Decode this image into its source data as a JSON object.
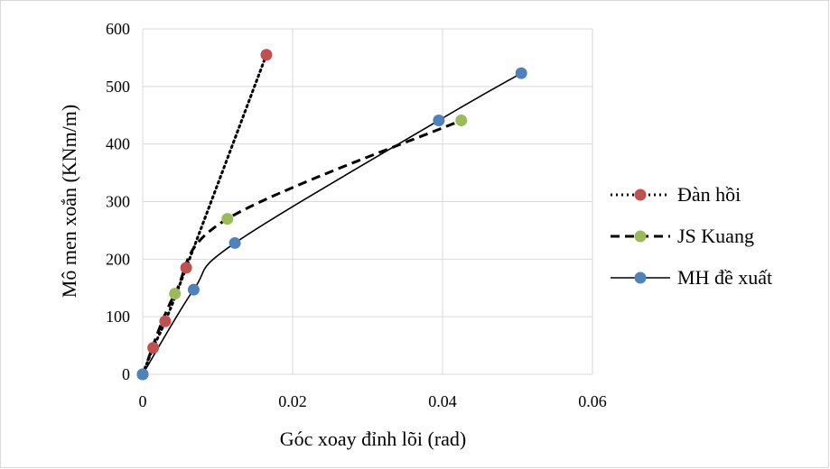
{
  "chart_data": {
    "type": "scatter",
    "title": "",
    "xlabel": "Góc xoay đỉnh lõi (rad)",
    "ylabel": "Mô men xoắn (KNm/m)",
    "xlim": [
      0,
      0.06
    ],
    "ylim": [
      0,
      600
    ],
    "x_ticks": [
      "0",
      "0.02",
      "0.04",
      "0.06"
    ],
    "y_ticks": [
      "0",
      "100",
      "200",
      "300",
      "400",
      "500",
      "600"
    ],
    "grid": "vertical and horizontal",
    "legend_position": "right",
    "series": [
      {
        "name": "Đàn hồi",
        "line_style": "dotted",
        "marker_color": "#c0504d",
        "points": [
          [
            0,
            0
          ],
          [
            0.0014,
            46
          ],
          [
            0.003,
            92
          ],
          [
            0.0058,
            185
          ],
          [
            0.0165,
            555
          ]
        ]
      },
      {
        "name": "JS Kuang",
        "line_style": "dashed",
        "marker_color": "#9bbb59",
        "points": [
          [
            0,
            0
          ],
          [
            0.0043,
            140
          ],
          [
            0.0113,
            270
          ],
          [
            0.0425,
            441
          ]
        ]
      },
      {
        "name": "MH đề xuất",
        "line_style": "solid",
        "marker_color": "#4f81bd",
        "points": [
          [
            0,
            0
          ],
          [
            0.0068,
            147
          ],
          [
            0.0123,
            228
          ],
          [
            0.0395,
            441
          ],
          [
            0.0505,
            523
          ]
        ]
      }
    ]
  }
}
